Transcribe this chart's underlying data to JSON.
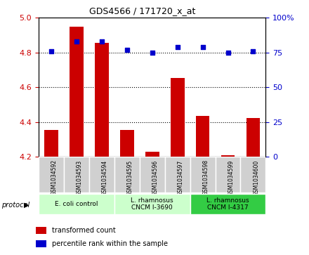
{
  "title": "GDS4566 / 171720_x_at",
  "samples": [
    "GSM1034592",
    "GSM1034593",
    "GSM1034594",
    "GSM1034595",
    "GSM1034596",
    "GSM1034597",
    "GSM1034598",
    "GSM1034599",
    "GSM1034600"
  ],
  "transformed_count": [
    4.355,
    4.95,
    4.855,
    4.355,
    4.23,
    4.655,
    4.435,
    4.21,
    4.425
  ],
  "percentile_rank": [
    76,
    83,
    83,
    77,
    75,
    79,
    79,
    75,
    76
  ],
  "ylim_left": [
    4.2,
    5.0
  ],
  "ylim_right": [
    0,
    100
  ],
  "yticks_left": [
    4.2,
    4.4,
    4.6,
    4.8,
    5.0
  ],
  "yticks_right": [
    0,
    25,
    50,
    75,
    100
  ],
  "ytick_labels_right": [
    "0",
    "25",
    "50",
    "75",
    "100%"
  ],
  "bar_color": "#cc0000",
  "dot_color": "#0000cc",
  "left_tick_color": "#cc0000",
  "right_tick_color": "#0000cc",
  "group_labels": [
    "E. coli control",
    "L. rhamnosus\nCNCM I-3690",
    "L. rhamnosus\nCNCM I-4317"
  ],
  "group_colors": [
    "#ccffcc",
    "#ccffcc",
    "#33cc44"
  ],
  "group_xranges": [
    [
      0,
      3
    ],
    [
      3,
      3
    ],
    [
      6,
      3
    ]
  ],
  "legend_colors": [
    "#cc0000",
    "#0000cc"
  ],
  "legend_labels": [
    "transformed count",
    "percentile rank within the sample"
  ]
}
